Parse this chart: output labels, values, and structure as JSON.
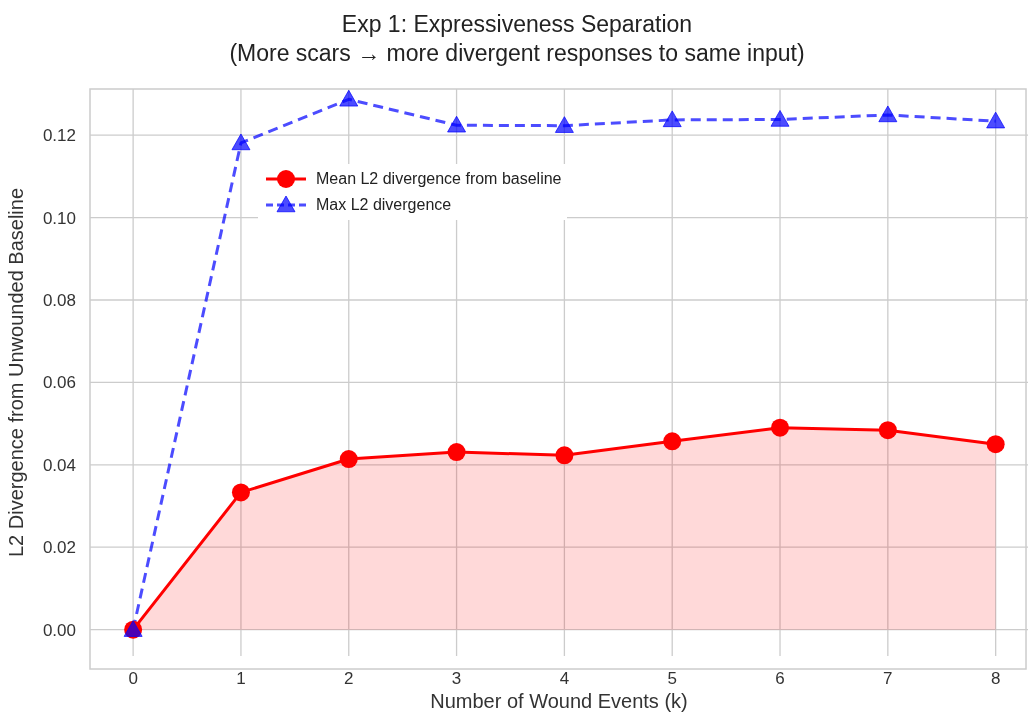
{
  "chart_data": {
    "type": "line",
    "title": "Exp 1: Expressiveness Separation\n(More scars → more divergent responses to same input)",
    "xlabel": "Number of Wound Events (k)",
    "ylabel": "L2 Divergence from Unwounded Baseline",
    "x": [
      0,
      1,
      2,
      3,
      4,
      5,
      6,
      7,
      8
    ],
    "series": [
      {
        "name": "Mean L2 divergence from baseline",
        "type": "area",
        "color": "#ff0000",
        "marker": "circle",
        "line_style": "solid",
        "values": [
          0,
          0.0333,
          0.0414,
          0.0431,
          0.0423,
          0.0457,
          0.049,
          0.0484,
          0.045
        ]
      },
      {
        "name": "Max L2 divergence",
        "color": "#0000ff",
        "marker": "triangle",
        "line_style": "dashed",
        "values": [
          0,
          0.1181,
          0.1287,
          0.1224,
          0.1223,
          0.1237,
          0.1238,
          0.1249,
          0.1234
        ]
      }
    ],
    "xlim": [
      -0.4,
      8.3
    ],
    "xticks": [
      0,
      1,
      2,
      3,
      4,
      5,
      6,
      7,
      8
    ],
    "ylim": [
      -0.0064,
      0.1312
    ],
    "yticks": [
      {
        "value": 0,
        "label": "0.00"
      },
      {
        "value": 0.02,
        "label": "0.02"
      },
      {
        "value": 0.04,
        "label": "0.04"
      },
      {
        "value": 0.06,
        "label": "0.06"
      },
      {
        "value": 0.08,
        "label": "0.08"
      },
      {
        "value": 0.1,
        "label": "0.10"
      },
      {
        "value": 0.12,
        "label": "0.12"
      }
    ],
    "grid": true,
    "legend": "top left"
  }
}
